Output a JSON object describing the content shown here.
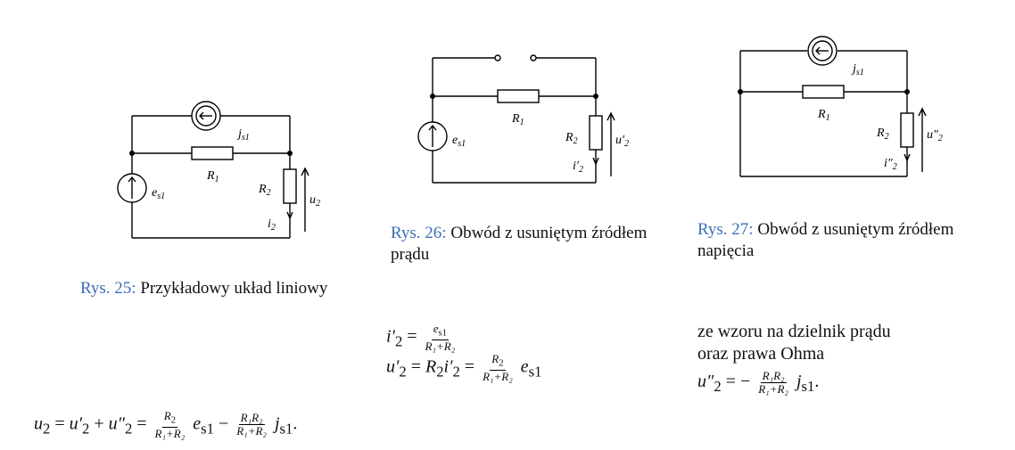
{
  "figures": [
    {
      "id": "rys25",
      "caption_label": "Rys. 25:",
      "caption_text": "Przykładowy układ liniowy",
      "labels": {
        "js": "j",
        "js_sub": "s1",
        "r1": "R",
        "r1_sub": "1",
        "r2": "R",
        "r2_sub": "2",
        "es": "e",
        "es_sub": "s1",
        "u": "u",
        "u_sub": "2",
        "i": "i",
        "i_sub": "2"
      }
    },
    {
      "id": "rys26",
      "caption_label": "Rys. 26:",
      "caption_text": "Obwód z usuniętym źródłem prądu",
      "labels": {
        "r1": "R",
        "r1_sub": "1",
        "r2": "R",
        "r2_sub": "2",
        "es": "e",
        "es_sub": "s1",
        "u": "u′",
        "u_sub": "2",
        "i": "i′",
        "i_sub": "2"
      }
    },
    {
      "id": "rys27",
      "caption_label": "Rys. 27:",
      "caption_text": "Obwód z usuniętym źródłem napięcia",
      "labels": {
        "js": "j",
        "js_sub": "s1",
        "r1": "R",
        "r1_sub": "1",
        "r2": "R",
        "r2_sub": "2",
        "u": "u″",
        "u_sub": "2",
        "i": "i″",
        "i_sub": "2"
      }
    }
  ],
  "equations": {
    "i2p": {
      "lhs": "i′",
      "lhs_sub": "2",
      "eq": "=",
      "num": "e",
      "num_sub": "s1",
      "den": "R₁+R₂"
    },
    "u2p": {
      "lhs": "u′",
      "lhs_sub": "2",
      "eq": "=",
      "mid": "R",
      "mid_sub": "2",
      "mid2": "i′",
      "mid2_sub": "2",
      "eq2": "=",
      "num": "R",
      "num_sub": "2",
      "den": "R₁+R₂",
      "tail": "e",
      "tail_sub": "s1"
    },
    "text1": "ze wzoru na dzielnik prądu",
    "text2": "oraz prawa Ohma",
    "u2pp": {
      "lhs": "u″",
      "lhs_sub": "2",
      "eq": "= −",
      "num": "R₁R₂",
      "den": "R₁+R₂",
      "tail": "j",
      "tail_sub": "s1",
      "end": "."
    },
    "u2": {
      "lhs": "u",
      "lhs_sub": "2",
      "eq": "=",
      "a": "u′",
      "a_sub": "2",
      "plus": "+",
      "b": "u″",
      "b_sub": "2",
      "eq2": "=",
      "num1": "R",
      "num1_sub": "2",
      "den1": "R₁+R₂",
      "t1": "e",
      "t1_sub": "s1",
      "minus": "−",
      "num2": "R₁R₂",
      "den2": "R₁+R₂",
      "t2": "j",
      "t2_sub": "s1",
      "end": "."
    }
  }
}
